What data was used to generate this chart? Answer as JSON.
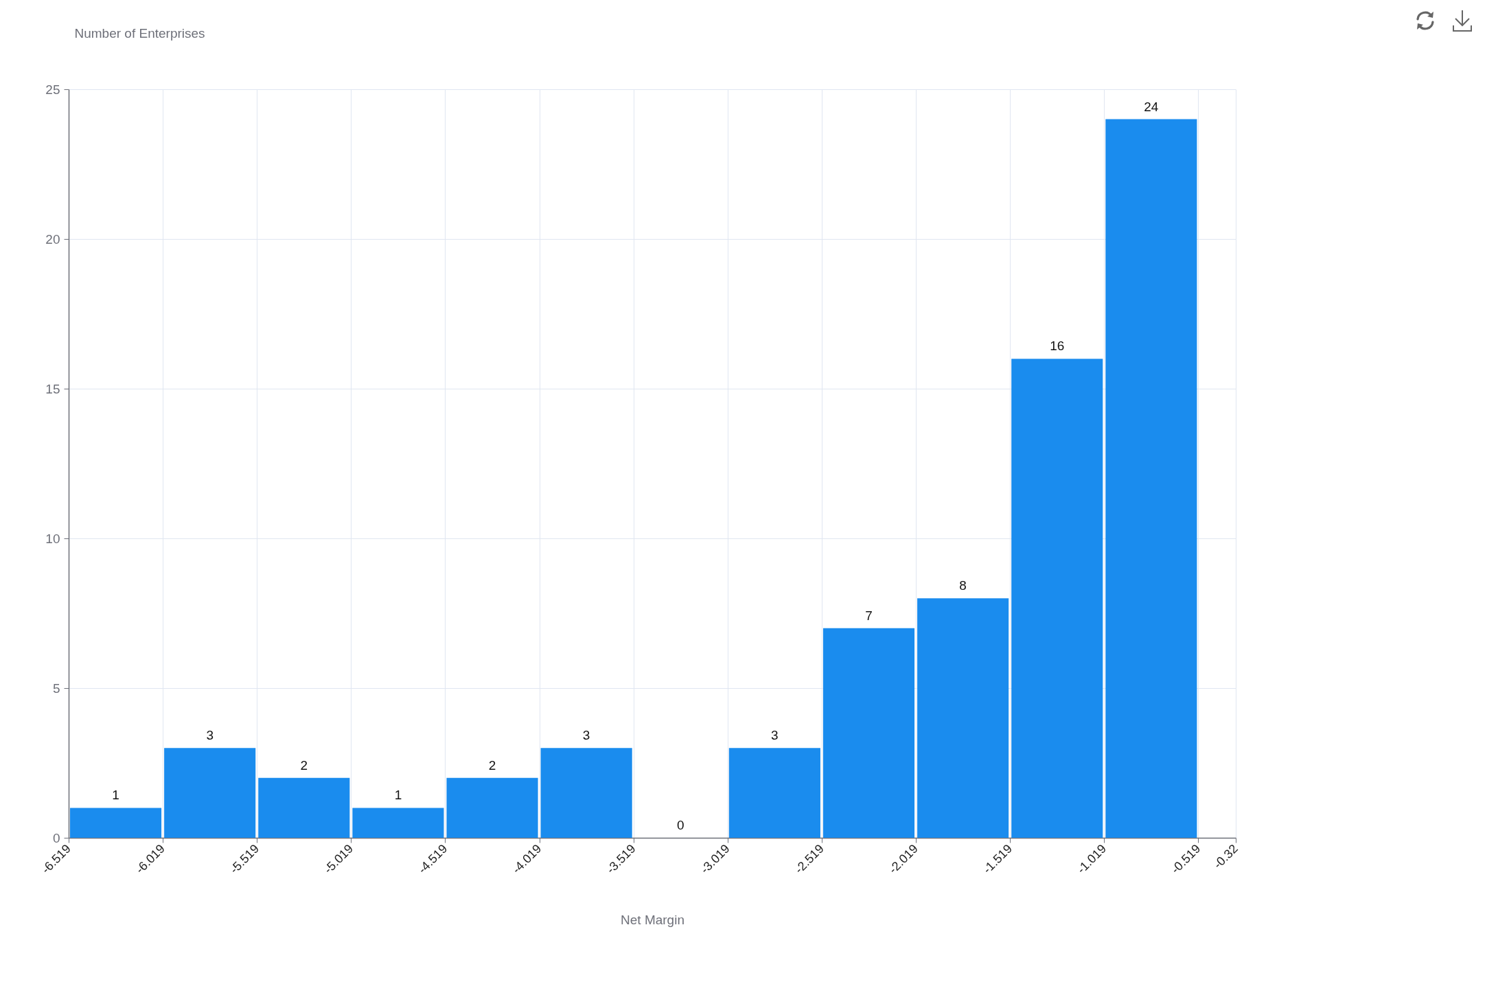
{
  "chart_data": {
    "type": "histogram",
    "xlabel": "Net Margin",
    "ylabel": "Number of Enterprises",
    "bins": [
      -6.519,
      -6.019,
      -5.519,
      -5.019,
      -4.519,
      -4.019,
      -3.519,
      -3.019,
      -2.519,
      -2.019,
      -1.519,
      -1.019,
      -0.519
    ],
    "values": [
      1,
      3,
      2,
      1,
      2,
      3,
      0,
      3,
      7,
      8,
      16,
      24
    ],
    "color": "#1a8cee",
    "xlim": [
      -6.519,
      -0.32
    ],
    "xticks": [
      -6.519,
      -6.019,
      -5.519,
      -5.019,
      -4.519,
      -4.019,
      -3.519,
      -3.019,
      -2.519,
      -2.019,
      -1.519,
      -1.019,
      -0.519,
      -0.32
    ],
    "ylim": [
      0,
      25
    ],
    "yticks": [
      0,
      5,
      10,
      15,
      20,
      25
    ],
    "grid": true,
    "data_labels": true
  }
}
